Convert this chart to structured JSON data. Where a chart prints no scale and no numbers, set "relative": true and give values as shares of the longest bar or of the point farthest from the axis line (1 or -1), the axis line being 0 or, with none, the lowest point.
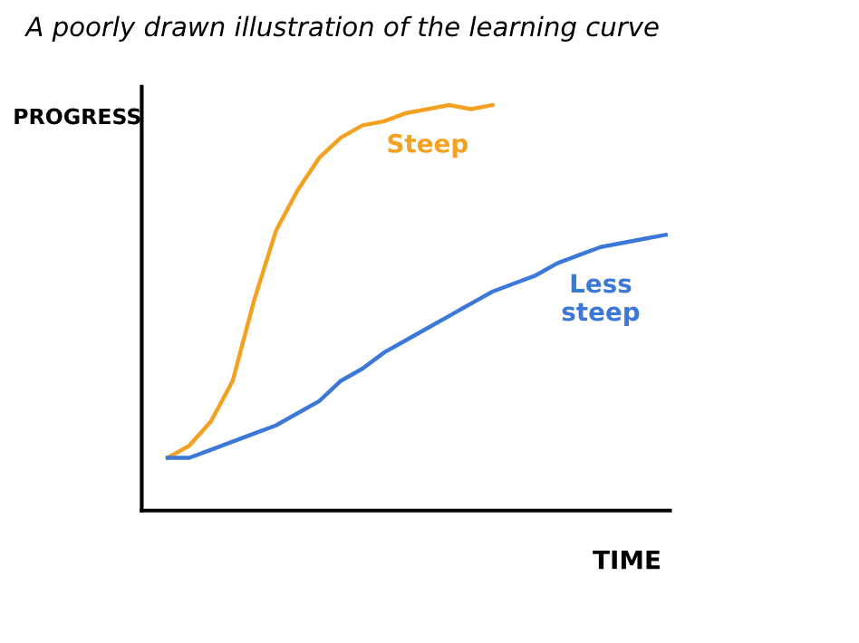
{
  "chart_data": {
    "type": "line",
    "title": "A poorly drawn illustration of the learning curve",
    "xlabel": "TIME",
    "ylabel": "PROGRESS",
    "relative": true,
    "categories": [
      null,
      null,
      null,
      null,
      null,
      null,
      null,
      null,
      null,
      null,
      null,
      null,
      null,
      null,
      null,
      null,
      null,
      null,
      null,
      null,
      null,
      null,
      null,
      null,
      null
    ],
    "series": [
      {
        "name": "Steep",
        "color": "#f4a020",
        "values": [
          null,
          0.13,
          0.16,
          0.22,
          0.32,
          0.52,
          0.69,
          0.79,
          0.87,
          0.92,
          0.95,
          0.96,
          0.98,
          0.99,
          1.0,
          0.99,
          1.0,
          null,
          null,
          null,
          null,
          null,
          null,
          null,
          null
        ]
      },
      {
        "name": "Less steep",
        "color": "#3c78d8",
        "values": [
          null,
          0.13,
          0.13,
          0.15,
          0.17,
          0.19,
          0.21,
          0.24,
          0.27,
          0.32,
          0.35,
          0.39,
          0.42,
          0.45,
          0.48,
          0.51,
          0.54,
          0.56,
          0.58,
          0.61,
          0.63,
          0.65,
          0.66,
          0.67,
          0.68
        ]
      }
    ],
    "legend": false,
    "grid": false,
    "marker": "none",
    "line_style": "solid"
  }
}
